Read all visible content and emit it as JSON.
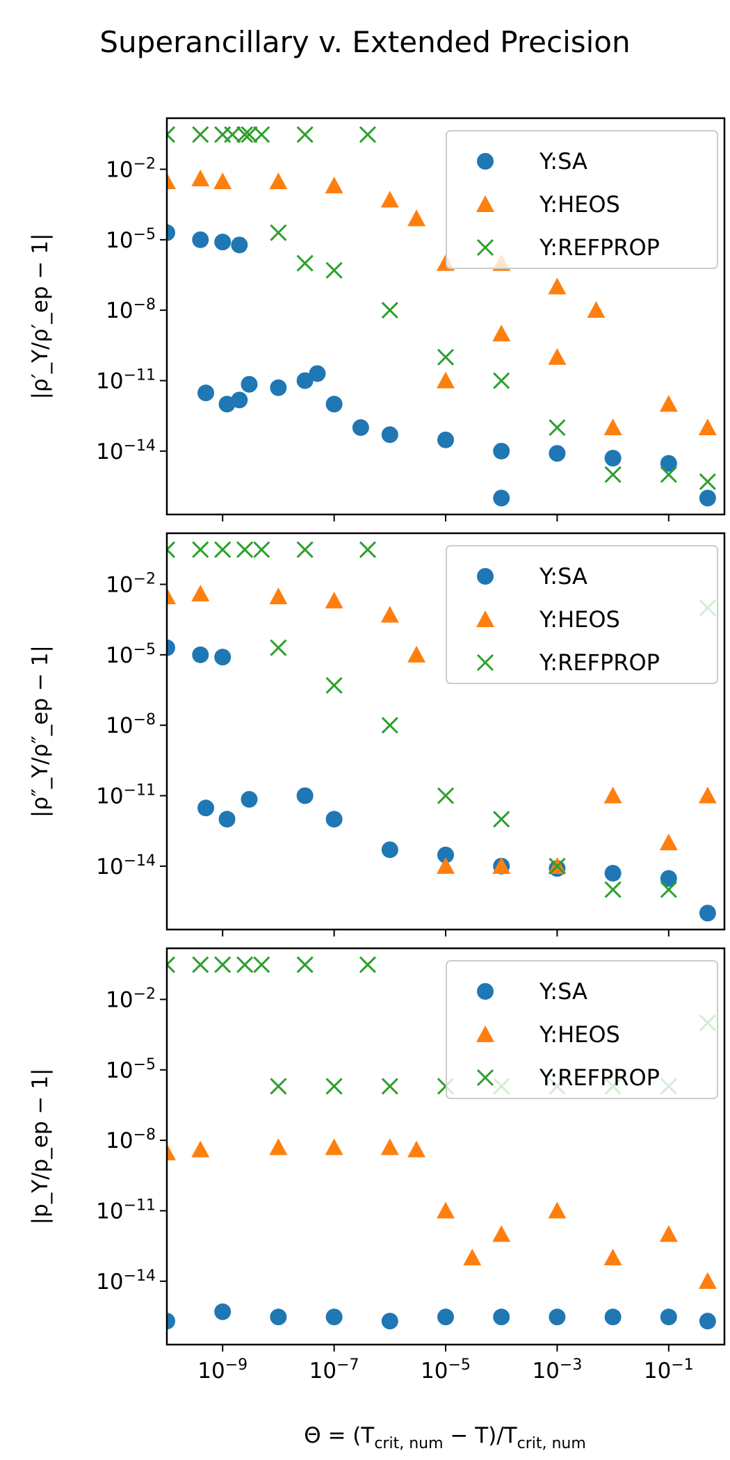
{
  "figure": {
    "title": "Superancillary v. Extended Precision",
    "xlabel_html": "Θ = (T<tspan font-size='22' baseline-shift='-8'>crit, num</tspan> − T)/T<tspan font-size='22' baseline-shift='-8'>crit, num</tspan>",
    "colors": {
      "SA": "#1f77b4",
      "HEOS": "#ff7f0e",
      "REFPROP": "#2ca02c"
    }
  },
  "chart_data": [
    {
      "type": "scatter",
      "ylabel": "|ρ′_Y/ρ′_ep − 1|",
      "xscale": "log",
      "yscale": "log",
      "xlim": [
        1e-10,
        1.0
      ],
      "ylim": [
        2e-17,
        1.5
      ],
      "xticks": [
        "10^-9",
        "10^-7",
        "10^-5",
        "10^-3",
        "10^-1"
      ],
      "yticks": [
        "10^-2",
        "10^-5",
        "10^-8",
        "10^-11",
        "10^-14"
      ],
      "legend": {
        "position": "upper right",
        "entries": [
          "Y:SA",
          "Y:HEOS",
          "Y:REFPROP"
        ]
      },
      "series": [
        {
          "name": "Y:SA",
          "marker": "circle",
          "color": "#1f77b4",
          "points": [
            [
              1e-10,
              2e-05
            ],
            [
              4e-10,
              1e-05
            ],
            [
              1e-09,
              8e-06
            ],
            [
              2e-09,
              6e-06
            ],
            [
              5e-10,
              3e-12
            ],
            [
              1.2e-09,
              1e-12
            ],
            [
              2e-09,
              1.5e-12
            ],
            [
              3e-09,
              7e-12
            ],
            [
              1e-08,
              5e-12
            ],
            [
              3e-08,
              1e-11
            ],
            [
              5e-08,
              2e-11
            ],
            [
              1e-07,
              1e-12
            ],
            [
              3e-07,
              1e-13
            ],
            [
              1e-06,
              5e-14
            ],
            [
              1e-05,
              3e-14
            ],
            [
              0.0001,
              1e-14
            ],
            [
              0.001,
              8e-15
            ],
            [
              0.01,
              5e-15
            ],
            [
              0.1,
              3e-15
            ],
            [
              0.5,
              1e-16
            ],
            [
              0.0001,
              1e-16
            ]
          ]
        },
        {
          "name": "Y:HEOS",
          "marker": "triangle",
          "color": "#ff7f0e",
          "points": [
            [
              1e-10,
              0.003
            ],
            [
              4e-10,
              0.004
            ],
            [
              1e-09,
              0.003
            ],
            [
              1e-08,
              0.003
            ],
            [
              1e-07,
              0.002
            ],
            [
              1e-06,
              0.0005
            ],
            [
              3e-06,
              8e-05
            ],
            [
              1e-05,
              1e-06
            ],
            [
              1e-05,
              1e-11
            ],
            [
              0.0001,
              1e-06
            ],
            [
              0.0001,
              1e-09
            ],
            [
              0.001,
              1e-07
            ],
            [
              0.001,
              1e-10
            ],
            [
              0.005,
              1e-08
            ],
            [
              0.01,
              1e-13
            ],
            [
              0.1,
              1e-12
            ],
            [
              0.5,
              1e-13
            ]
          ]
        },
        {
          "name": "Y:REFPROP",
          "marker": "x",
          "color": "#2ca02c",
          "points": [
            [
              1e-10,
              0.3
            ],
            [
              4e-10,
              0.3
            ],
            [
              1e-09,
              0.3
            ],
            [
              1.5e-09,
              0.3
            ],
            [
              2.5e-09,
              0.3
            ],
            [
              3e-09,
              0.3
            ],
            [
              5e-09,
              0.3
            ],
            [
              3e-08,
              0.3
            ],
            [
              4e-07,
              0.3
            ],
            [
              1e-08,
              2e-05
            ],
            [
              3e-08,
              1e-06
            ],
            [
              1e-07,
              5e-07
            ],
            [
              1e-06,
              1e-08
            ],
            [
              1e-05,
              1e-10
            ],
            [
              0.0001,
              1e-11
            ],
            [
              0.001,
              1e-13
            ],
            [
              0.01,
              1e-15
            ],
            [
              0.1,
              1e-15
            ],
            [
              0.5,
              5e-16
            ]
          ]
        }
      ]
    },
    {
      "type": "scatter",
      "ylabel": "|ρ″_Y/ρ″_ep − 1|",
      "xscale": "log",
      "yscale": "log",
      "xlim": [
        1e-10,
        1.0
      ],
      "ylim": [
        2e-17,
        1.5
      ],
      "xticks": [
        "10^-9",
        "10^-7",
        "10^-5",
        "10^-3",
        "10^-1"
      ],
      "yticks": [
        "10^-2",
        "10^-5",
        "10^-8",
        "10^-11",
        "10^-14"
      ],
      "legend": {
        "position": "upper right",
        "entries": [
          "Y:SA",
          "Y:HEOS",
          "Y:REFPROP"
        ]
      },
      "series": [
        {
          "name": "Y:SA",
          "marker": "circle",
          "color": "#1f77b4",
          "points": [
            [
              1e-10,
              2e-05
            ],
            [
              4e-10,
              1e-05
            ],
            [
              1e-09,
              8e-06
            ],
            [
              5e-10,
              3e-12
            ],
            [
              1.2e-09,
              1e-12
            ],
            [
              3e-09,
              7e-12
            ],
            [
              3e-08,
              1e-11
            ],
            [
              1e-07,
              1e-12
            ],
            [
              1e-06,
              5e-14
            ],
            [
              1e-05,
              3e-14
            ],
            [
              0.0001,
              1e-14
            ],
            [
              0.001,
              8e-15
            ],
            [
              0.01,
              5e-15
            ],
            [
              0.1,
              3e-15
            ],
            [
              0.5,
              1e-16
            ]
          ]
        },
        {
          "name": "Y:HEOS",
          "marker": "triangle",
          "color": "#ff7f0e",
          "points": [
            [
              1e-10,
              0.003
            ],
            [
              4e-10,
              0.004
            ],
            [
              1e-08,
              0.003
            ],
            [
              1e-07,
              0.002
            ],
            [
              1e-06,
              0.0005
            ],
            [
              3e-06,
              1e-05
            ],
            [
              1e-05,
              1e-14
            ],
            [
              0.0001,
              1e-14
            ],
            [
              0.001,
              1e-14
            ],
            [
              0.01,
              1e-11
            ],
            [
              0.1,
              1e-13
            ],
            [
              0.5,
              1e-11
            ]
          ]
        },
        {
          "name": "Y:REFPROP",
          "marker": "x",
          "color": "#2ca02c",
          "points": [
            [
              1e-10,
              0.3
            ],
            [
              4e-10,
              0.3
            ],
            [
              1e-09,
              0.3
            ],
            [
              2.5e-09,
              0.3
            ],
            [
              5e-09,
              0.3
            ],
            [
              3e-08,
              0.3
            ],
            [
              4e-07,
              0.3
            ],
            [
              1e-08,
              2e-05
            ],
            [
              1e-07,
              5e-07
            ],
            [
              1e-06,
              1e-08
            ],
            [
              1e-05,
              1e-11
            ],
            [
              0.0001,
              1e-12
            ],
            [
              0.001,
              1e-14
            ],
            [
              0.01,
              1e-15
            ],
            [
              0.1,
              1e-15
            ],
            [
              0.5,
              0.001
            ]
          ]
        }
      ]
    },
    {
      "type": "scatter",
      "ylabel": "|p_Y/p_ep − 1|",
      "xscale": "log",
      "yscale": "log",
      "xlim": [
        1e-10,
        1.0
      ],
      "ylim": [
        2e-17,
        1.5
      ],
      "xticks": [
        "10^-9",
        "10^-7",
        "10^-5",
        "10^-3",
        "10^-1"
      ],
      "yticks": [
        "10^-2",
        "10^-5",
        "10^-8",
        "10^-11",
        "10^-14"
      ],
      "legend": {
        "position": "upper right",
        "entries": [
          "Y:SA",
          "Y:HEOS",
          "Y:REFPROP"
        ]
      },
      "series": [
        {
          "name": "Y:SA",
          "marker": "circle",
          "color": "#1f77b4",
          "points": [
            [
              1e-10,
              2e-16
            ],
            [
              1e-09,
              5e-16
            ],
            [
              1e-08,
              3e-16
            ],
            [
              1e-07,
              3e-16
            ],
            [
              1e-06,
              2e-16
            ],
            [
              1e-05,
              3e-16
            ],
            [
              0.0001,
              3e-16
            ],
            [
              0.001,
              3e-16
            ],
            [
              0.01,
              3e-16
            ],
            [
              0.1,
              3e-16
            ],
            [
              0.5,
              2e-16
            ]
          ]
        },
        {
          "name": "Y:HEOS",
          "marker": "triangle",
          "color": "#ff7f0e",
          "points": [
            [
              1e-10,
              3e-09
            ],
            [
              4e-10,
              4e-09
            ],
            [
              1e-08,
              5e-09
            ],
            [
              1e-07,
              5e-09
            ],
            [
              1e-06,
              5e-09
            ],
            [
              3e-06,
              4e-09
            ],
            [
              1e-05,
              1e-11
            ],
            [
              3e-05,
              1e-13
            ],
            [
              0.0001,
              1e-12
            ],
            [
              0.001,
              1e-11
            ],
            [
              0.01,
              1e-13
            ],
            [
              0.1,
              1e-12
            ],
            [
              0.5,
              1e-14
            ]
          ]
        },
        {
          "name": "Y:REFPROP",
          "marker": "x",
          "color": "#2ca02c",
          "points": [
            [
              1e-10,
              0.3
            ],
            [
              4e-10,
              0.3
            ],
            [
              1e-09,
              0.3
            ],
            [
              2.5e-09,
              0.3
            ],
            [
              5e-09,
              0.3
            ],
            [
              3e-08,
              0.3
            ],
            [
              4e-07,
              0.3
            ],
            [
              1e-08,
              2e-06
            ],
            [
              1e-07,
              2e-06
            ],
            [
              1e-06,
              2e-06
            ],
            [
              1e-05,
              2e-06
            ],
            [
              0.0001,
              2e-06
            ],
            [
              0.001,
              2e-06
            ],
            [
              0.01,
              2e-06
            ],
            [
              0.1,
              2e-06
            ],
            [
              0.5,
              0.001
            ]
          ]
        }
      ]
    }
  ]
}
